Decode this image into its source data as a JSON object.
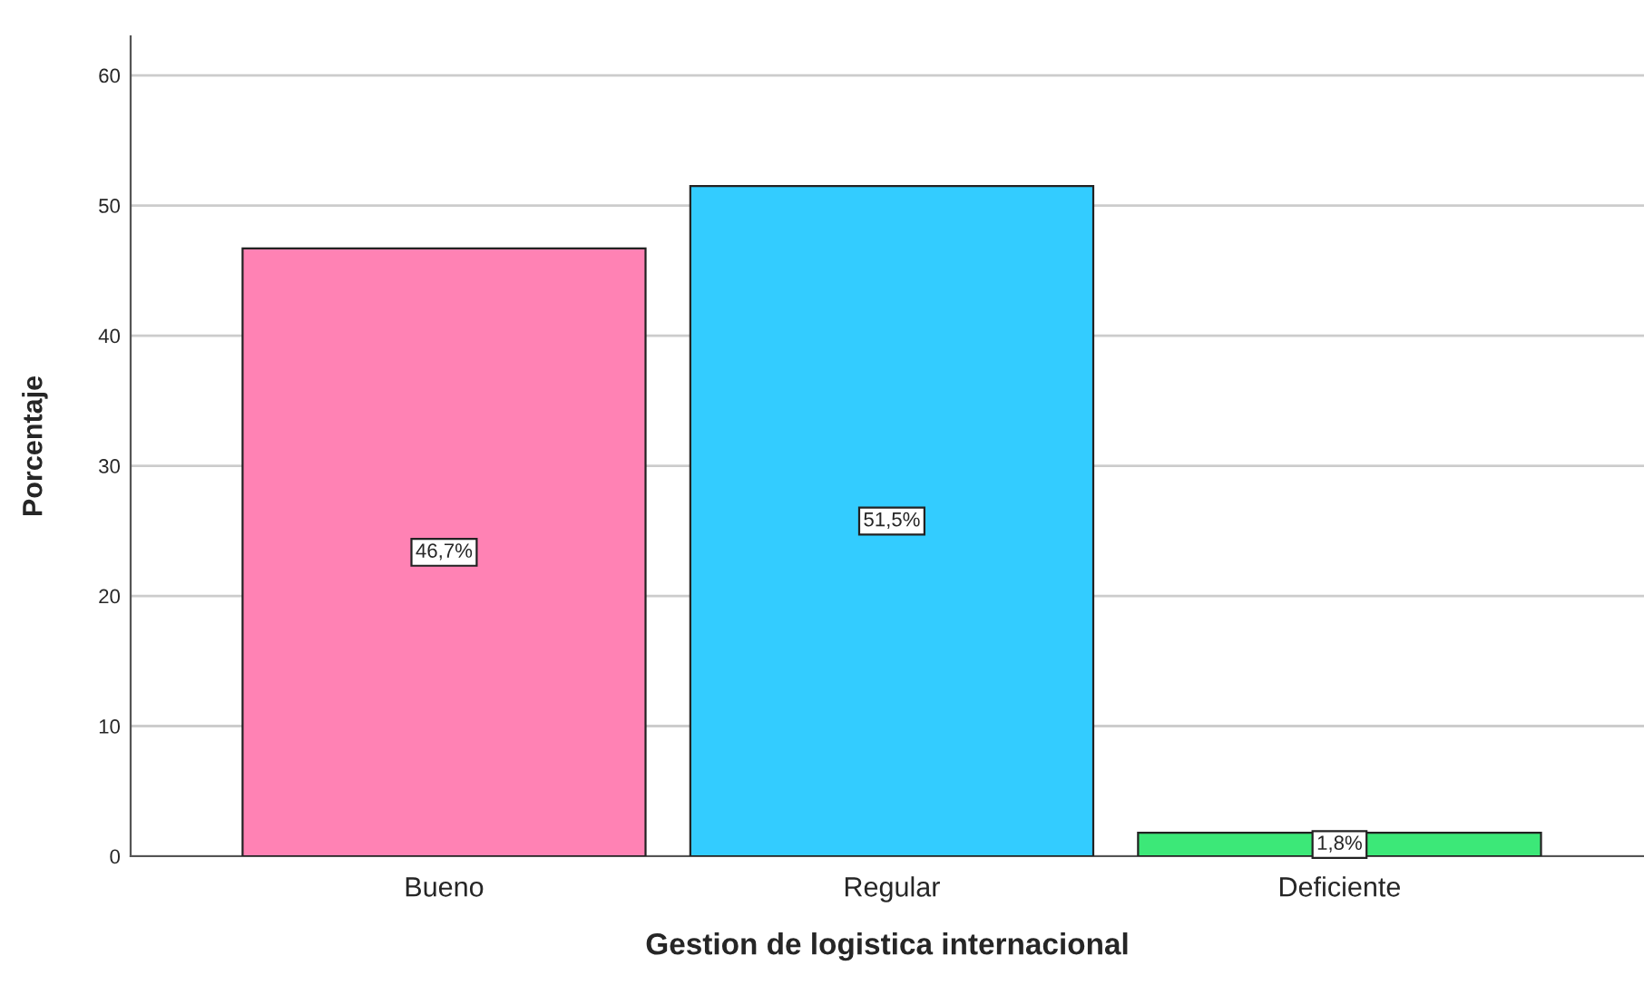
{
  "chart_data": {
    "type": "bar",
    "xlabel": "Gestion de logistica internacional",
    "ylabel": "Porcentaje",
    "categories": [
      "Bueno",
      "Regular",
      "Deficiente"
    ],
    "values": [
      46.7,
      51.5,
      1.8
    ],
    "colors": [
      "#ff82b4",
      "#33ccff",
      "#3ce878"
    ],
    "value_labels": [
      "46,7%",
      "51,5%",
      "1,8%"
    ],
    "ylim": [
      0,
      63
    ],
    "yticks": [
      0,
      10,
      20,
      30,
      40,
      50,
      60
    ],
    "grid": "y",
    "legend": false
  }
}
